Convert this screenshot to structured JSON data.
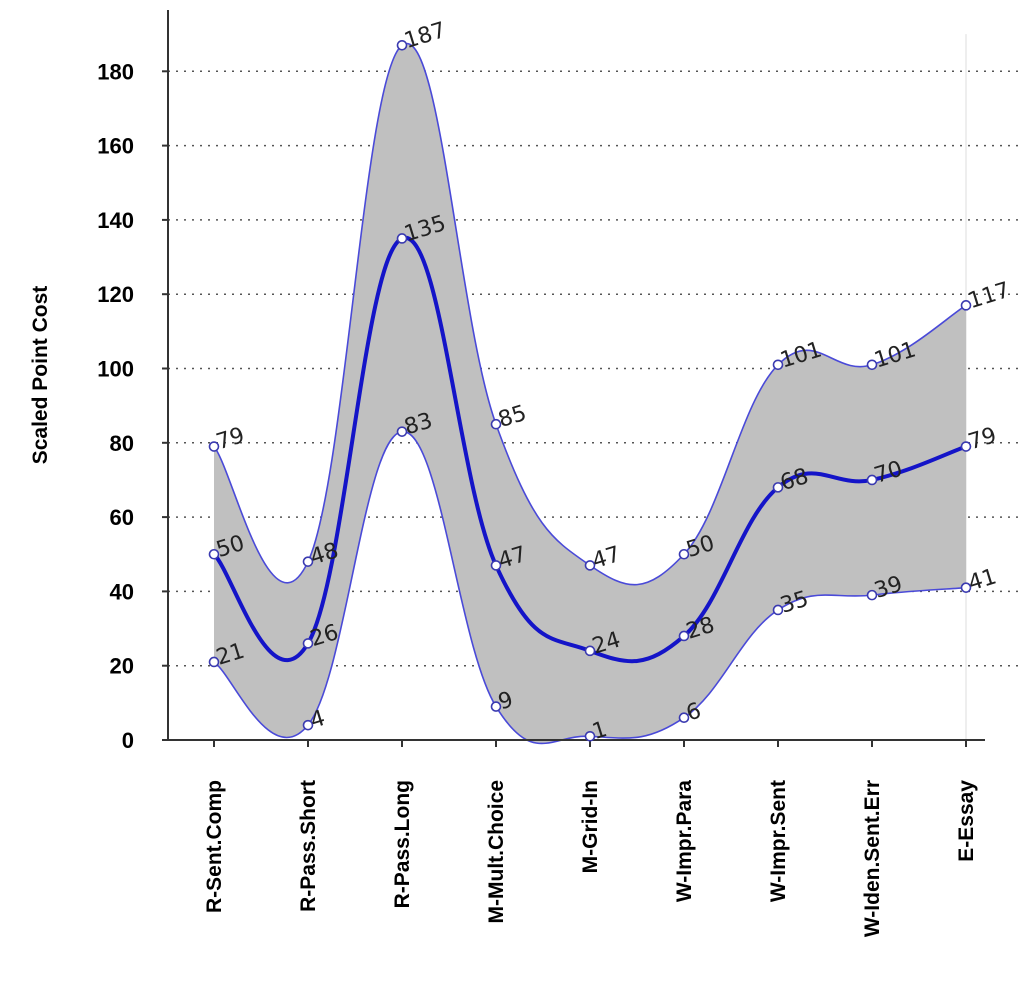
{
  "chart_data": {
    "type": "area",
    "title": "",
    "xlabel": "",
    "ylabel": "Scaled Point Cost",
    "categories": [
      "R-Sent.Comp",
      "R-Pass.Short",
      "R-Pass.Long",
      "M-Mult.Choice",
      "M-Grid-In",
      "W-Impr.Para",
      "W-Impr.Sent",
      "W-Iden.Sent.Err",
      "E-Essay"
    ],
    "series": [
      {
        "role": "upper",
        "values": [
          79,
          48,
          187,
          85,
          47,
          50,
          101,
          101,
          117
        ]
      },
      {
        "role": "mean",
        "values": [
          50,
          26,
          135,
          47,
          24,
          28,
          68,
          70,
          79
        ]
      },
      {
        "role": "lower",
        "values": [
          21,
          4,
          83,
          9,
          1,
          6,
          35,
          39,
          41
        ]
      }
    ],
    "ylim": [
      0,
      190
    ],
    "yticks": [
      0,
      20,
      40,
      60,
      80,
      100,
      120,
      140,
      160,
      180
    ],
    "grid": "horizontal dotted",
    "colors": {
      "band_fill": "#c0c0c0",
      "band_edge": "#4a4ad8",
      "mean_line": "#1414c8",
      "marker_stroke": "#3a3ab0"
    }
  }
}
